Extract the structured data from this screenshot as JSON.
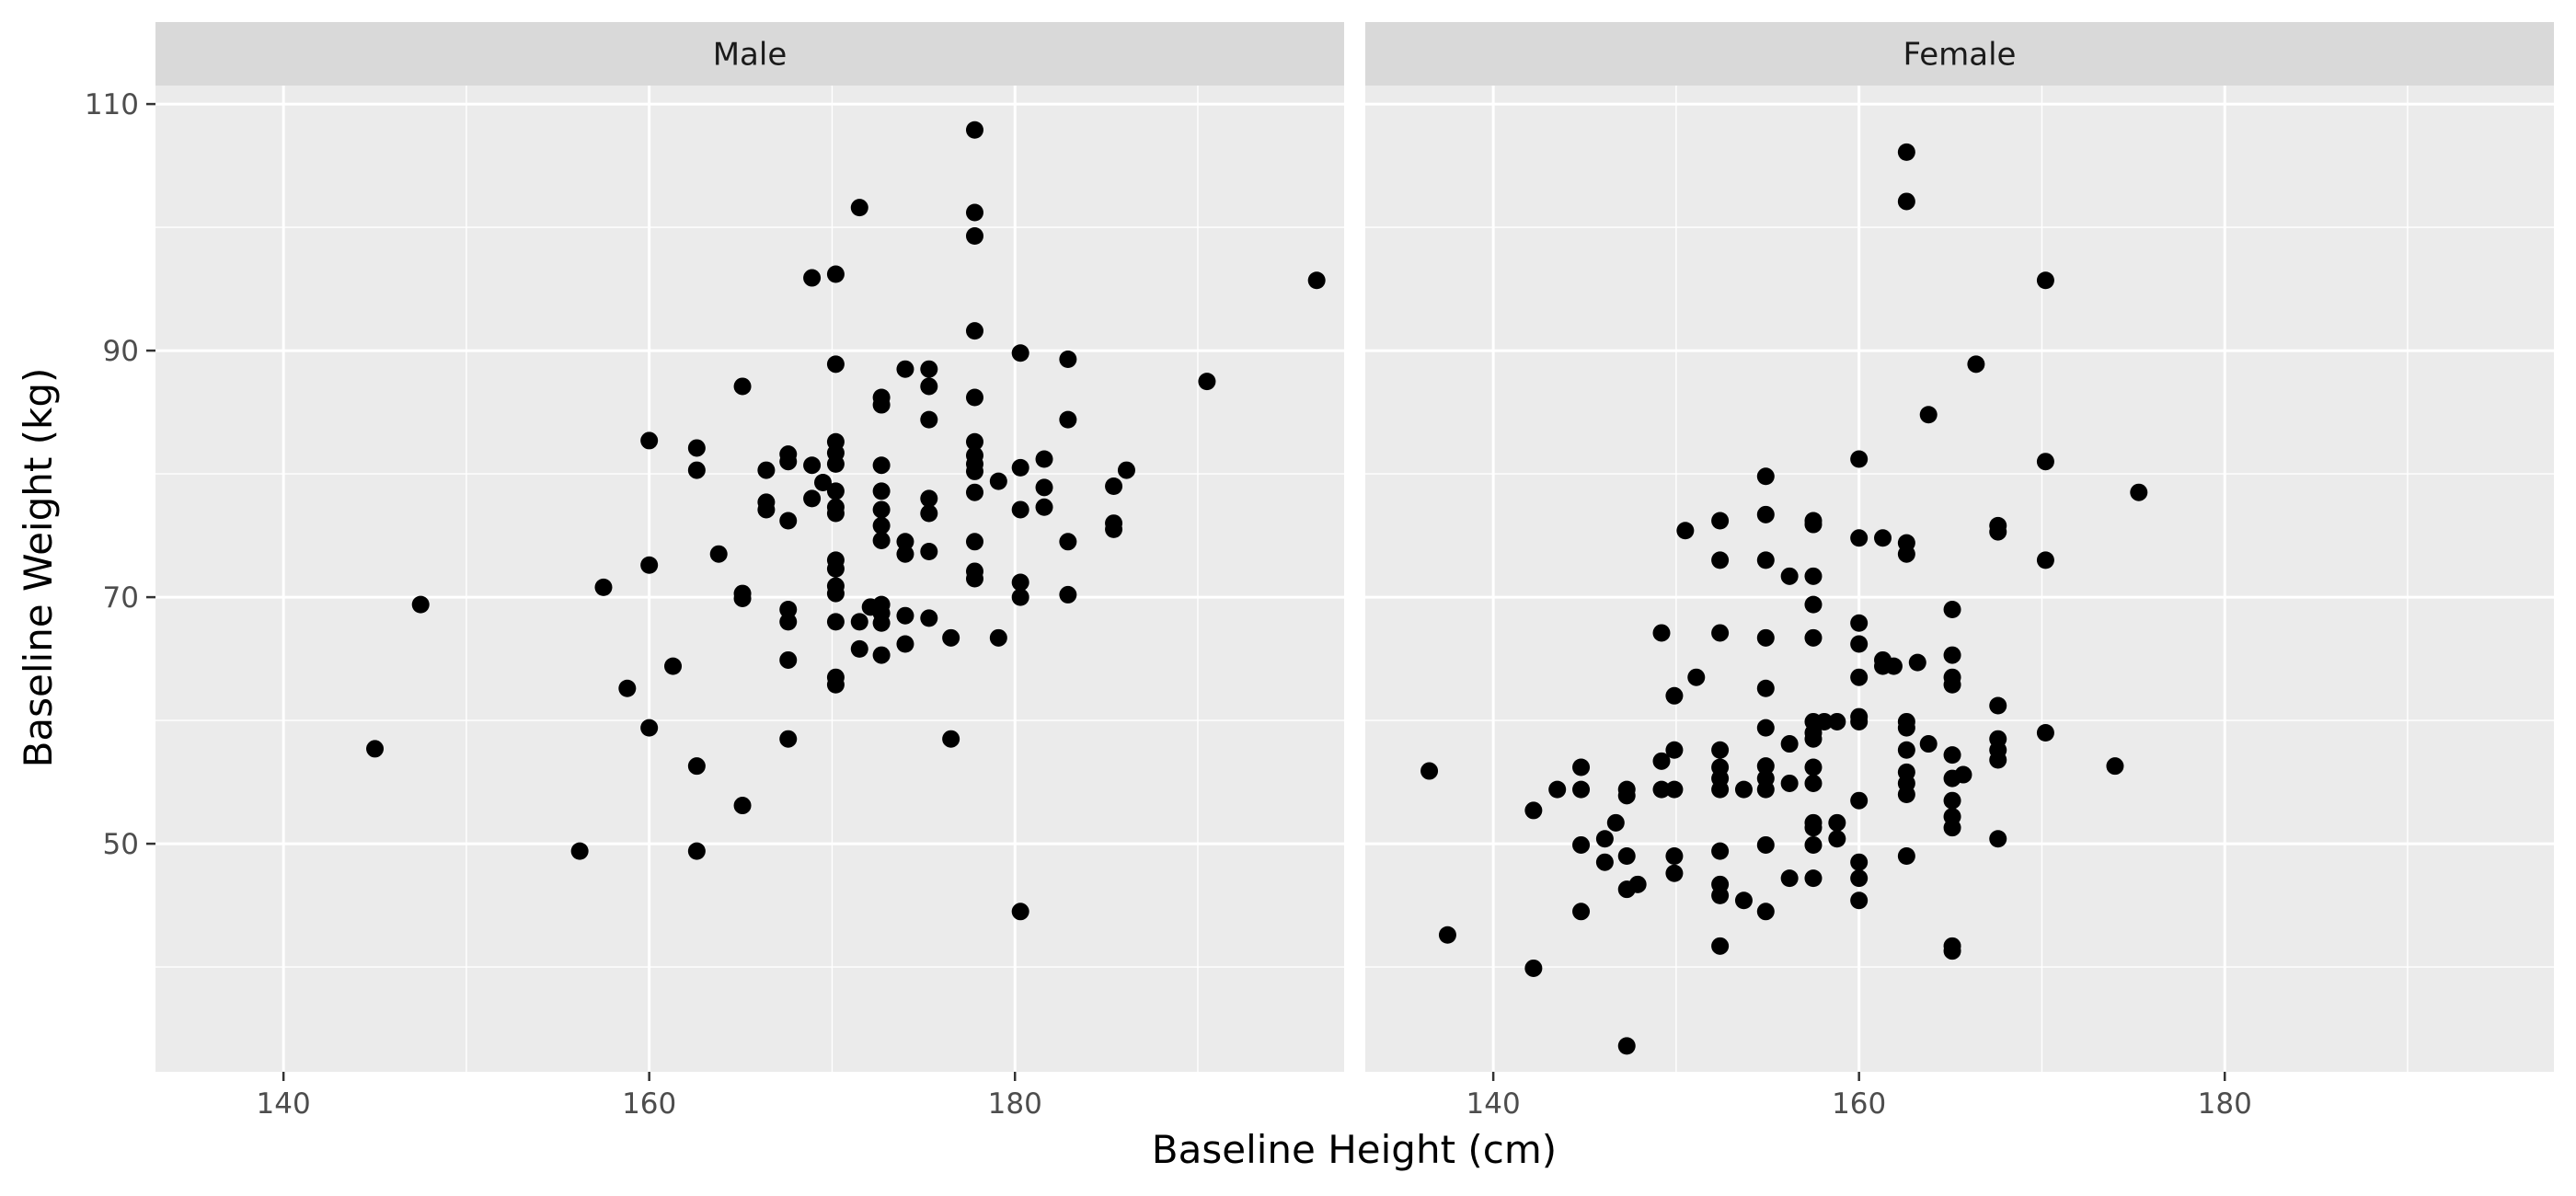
{
  "colors": {
    "panel_background": "#ebebeb",
    "strip_background": "#d9d9d9",
    "grid_line": "#ffffff",
    "point": "#000000",
    "tick_mark": "#333333"
  },
  "chart_data": {
    "type": "scatter",
    "xlabel": "Baseline Height (cm)",
    "ylabel": "Baseline Weight (kg)",
    "xlim": [
      133,
      198
    ],
    "ylim": [
      31.5,
      111.5
    ],
    "x_ticks": [
      140,
      160,
      180
    ],
    "y_ticks": [
      50,
      70,
      90,
      110
    ],
    "x_tick_labels": [
      "140",
      "160",
      "180"
    ],
    "y_tick_labels": [
      "50",
      "70",
      "90",
      "110"
    ],
    "grid": true,
    "legend": "none",
    "facets": [
      {
        "label": "Male",
        "points": [
          [
            145.0,
            57.7
          ],
          [
            147.5,
            69.4
          ],
          [
            156.2,
            49.4
          ],
          [
            157.5,
            70.8
          ],
          [
            158.8,
            62.6
          ],
          [
            160.0,
            82.7
          ],
          [
            160.0,
            72.6
          ],
          [
            160.0,
            59.4
          ],
          [
            161.3,
            64.4
          ],
          [
            162.6,
            82.1
          ],
          [
            162.6,
            80.3
          ],
          [
            162.6,
            56.3
          ],
          [
            162.6,
            49.4
          ],
          [
            163.8,
            73.5
          ],
          [
            165.1,
            87.1
          ],
          [
            165.1,
            70.3
          ],
          [
            165.1,
            69.9
          ],
          [
            165.1,
            53.1
          ],
          [
            166.4,
            80.3
          ],
          [
            166.4,
            77.7
          ],
          [
            166.4,
            77.1
          ],
          [
            167.6,
            81.6
          ],
          [
            167.6,
            81.0
          ],
          [
            167.6,
            76.2
          ],
          [
            167.6,
            69.0
          ],
          [
            167.6,
            68.0
          ],
          [
            167.6,
            64.9
          ],
          [
            167.6,
            58.5
          ],
          [
            168.9,
            95.9
          ],
          [
            168.9,
            80.7
          ],
          [
            168.9,
            78.0
          ],
          [
            169.5,
            79.3
          ],
          [
            170.2,
            96.2
          ],
          [
            170.2,
            88.9
          ],
          [
            170.2,
            82.6
          ],
          [
            170.2,
            81.7
          ],
          [
            170.2,
            80.8
          ],
          [
            170.2,
            78.6
          ],
          [
            170.2,
            77.3
          ],
          [
            170.2,
            76.8
          ],
          [
            170.2,
            73.0
          ],
          [
            170.2,
            72.3
          ],
          [
            170.2,
            70.9
          ],
          [
            170.2,
            70.3
          ],
          [
            170.2,
            68.0
          ],
          [
            170.2,
            63.5
          ],
          [
            170.2,
            62.9
          ],
          [
            171.5,
            101.6
          ],
          [
            171.5,
            68.0
          ],
          [
            171.5,
            65.8
          ],
          [
            172.1,
            69.2
          ],
          [
            172.7,
            86.2
          ],
          [
            172.7,
            85.6
          ],
          [
            172.7,
            80.7
          ],
          [
            172.7,
            78.6
          ],
          [
            172.7,
            77.1
          ],
          [
            172.7,
            75.8
          ],
          [
            172.7,
            74.6
          ],
          [
            172.7,
            69.4
          ],
          [
            172.7,
            68.7
          ],
          [
            172.7,
            67.9
          ],
          [
            172.7,
            65.3
          ],
          [
            174.0,
            88.5
          ],
          [
            174.0,
            74.5
          ],
          [
            174.0,
            73.5
          ],
          [
            174.0,
            68.5
          ],
          [
            174.0,
            66.2
          ],
          [
            175.3,
            88.5
          ],
          [
            175.3,
            87.1
          ],
          [
            175.3,
            84.4
          ],
          [
            175.3,
            78.0
          ],
          [
            175.3,
            76.8
          ],
          [
            175.3,
            73.7
          ],
          [
            175.3,
            68.3
          ],
          [
            176.5,
            66.7
          ],
          [
            176.5,
            58.5
          ],
          [
            177.8,
            107.9
          ],
          [
            177.8,
            101.2
          ],
          [
            177.8,
            99.3
          ],
          [
            177.8,
            91.6
          ],
          [
            177.8,
            86.2
          ],
          [
            177.8,
            82.6
          ],
          [
            177.8,
            81.5
          ],
          [
            177.8,
            80.8
          ],
          [
            177.8,
            80.2
          ],
          [
            177.8,
            78.5
          ],
          [
            177.8,
            74.5
          ],
          [
            177.8,
            72.1
          ],
          [
            177.8,
            71.5
          ],
          [
            179.1,
            79.4
          ],
          [
            179.1,
            66.7
          ],
          [
            180.3,
            89.8
          ],
          [
            180.3,
            80.5
          ],
          [
            180.3,
            77.1
          ],
          [
            180.3,
            71.2
          ],
          [
            180.3,
            70.0
          ],
          [
            180.3,
            44.5
          ],
          [
            181.6,
            81.2
          ],
          [
            181.6,
            78.9
          ],
          [
            181.6,
            77.3
          ],
          [
            182.9,
            89.3
          ],
          [
            182.9,
            84.4
          ],
          [
            182.9,
            74.5
          ],
          [
            182.9,
            70.2
          ],
          [
            185.4,
            79.0
          ],
          [
            185.4,
            76.0
          ],
          [
            185.4,
            75.5
          ],
          [
            186.1,
            80.3
          ],
          [
            190.5,
            87.5
          ],
          [
            196.5,
            95.7
          ]
        ]
      },
      {
        "label": "Female",
        "points": [
          [
            136.5,
            55.9
          ],
          [
            137.5,
            42.6
          ],
          [
            142.2,
            52.7
          ],
          [
            142.2,
            39.9
          ],
          [
            143.5,
            54.4
          ],
          [
            144.8,
            56.2
          ],
          [
            144.8,
            54.4
          ],
          [
            144.8,
            49.9
          ],
          [
            144.8,
            44.5
          ],
          [
            146.1,
            50.4
          ],
          [
            146.1,
            48.5
          ],
          [
            146.7,
            51.7
          ],
          [
            147.3,
            54.4
          ],
          [
            147.3,
            53.9
          ],
          [
            147.3,
            49.0
          ],
          [
            147.3,
            46.3
          ],
          [
            147.3,
            33.6
          ],
          [
            147.9,
            46.7
          ],
          [
            149.2,
            67.1
          ],
          [
            149.2,
            56.7
          ],
          [
            149.2,
            54.4
          ],
          [
            149.9,
            62.0
          ],
          [
            149.9,
            57.6
          ],
          [
            149.9,
            54.4
          ],
          [
            149.9,
            49.0
          ],
          [
            149.9,
            47.6
          ],
          [
            150.5,
            75.4
          ],
          [
            151.1,
            63.5
          ],
          [
            152.4,
            76.2
          ],
          [
            152.4,
            73.0
          ],
          [
            152.4,
            67.1
          ],
          [
            152.4,
            57.6
          ],
          [
            152.4,
            56.2
          ],
          [
            152.4,
            55.3
          ],
          [
            152.4,
            54.4
          ],
          [
            152.4,
            49.4
          ],
          [
            152.4,
            46.7
          ],
          [
            152.4,
            45.8
          ],
          [
            152.4,
            41.7
          ],
          [
            153.7,
            54.4
          ],
          [
            153.7,
            45.4
          ],
          [
            154.9,
            79.8
          ],
          [
            154.9,
            76.7
          ],
          [
            154.9,
            73.0
          ],
          [
            154.9,
            66.7
          ],
          [
            154.9,
            62.6
          ],
          [
            154.9,
            59.4
          ],
          [
            154.9,
            56.3
          ],
          [
            154.9,
            55.3
          ],
          [
            154.9,
            54.4
          ],
          [
            154.9,
            49.9
          ],
          [
            154.9,
            44.5
          ],
          [
            156.2,
            71.7
          ],
          [
            156.2,
            58.1
          ],
          [
            156.2,
            54.9
          ],
          [
            156.2,
            47.2
          ],
          [
            157.5,
            76.2
          ],
          [
            157.5,
            75.9
          ],
          [
            157.5,
            71.7
          ],
          [
            157.5,
            69.4
          ],
          [
            157.5,
            66.7
          ],
          [
            157.5,
            59.9
          ],
          [
            157.5,
            59.0
          ],
          [
            157.5,
            58.5
          ],
          [
            157.5,
            56.2
          ],
          [
            157.5,
            54.9
          ],
          [
            157.5,
            51.7
          ],
          [
            157.5,
            51.3
          ],
          [
            157.5,
            49.9
          ],
          [
            157.5,
            47.2
          ],
          [
            158.1,
            59.9
          ],
          [
            158.8,
            59.9
          ],
          [
            158.8,
            51.7
          ],
          [
            158.8,
            50.4
          ],
          [
            160.0,
            81.2
          ],
          [
            160.0,
            74.8
          ],
          [
            160.0,
            67.9
          ],
          [
            160.0,
            66.2
          ],
          [
            160.0,
            63.5
          ],
          [
            160.0,
            60.3
          ],
          [
            160.0,
            59.9
          ],
          [
            160.0,
            53.5
          ],
          [
            160.0,
            48.5
          ],
          [
            160.0,
            47.2
          ],
          [
            160.0,
            45.4
          ],
          [
            161.3,
            74.8
          ],
          [
            161.3,
            64.9
          ],
          [
            161.3,
            64.4
          ],
          [
            161.9,
            64.4
          ],
          [
            162.6,
            106.1
          ],
          [
            162.6,
            102.1
          ],
          [
            162.6,
            74.4
          ],
          [
            162.6,
            73.5
          ],
          [
            162.6,
            59.9
          ],
          [
            162.6,
            59.4
          ],
          [
            162.6,
            57.6
          ],
          [
            162.6,
            55.8
          ],
          [
            162.6,
            54.9
          ],
          [
            162.6,
            54.0
          ],
          [
            162.6,
            49.0
          ],
          [
            163.2,
            64.7
          ],
          [
            163.8,
            84.8
          ],
          [
            163.8,
            58.1
          ],
          [
            165.1,
            69.0
          ],
          [
            165.1,
            65.3
          ],
          [
            165.1,
            63.5
          ],
          [
            165.1,
            62.9
          ],
          [
            165.1,
            57.2
          ],
          [
            165.1,
            55.3
          ],
          [
            165.1,
            53.5
          ],
          [
            165.1,
            52.2
          ],
          [
            165.1,
            51.3
          ],
          [
            165.1,
            41.7
          ],
          [
            165.1,
            41.3
          ],
          [
            165.7,
            55.6
          ],
          [
            166.4,
            88.9
          ],
          [
            167.6,
            75.8
          ],
          [
            167.6,
            75.3
          ],
          [
            167.6,
            61.2
          ],
          [
            167.6,
            58.5
          ],
          [
            167.6,
            57.6
          ],
          [
            167.6,
            56.8
          ],
          [
            167.6,
            50.4
          ],
          [
            170.2,
            95.7
          ],
          [
            170.2,
            81.0
          ],
          [
            170.2,
            73.0
          ],
          [
            170.2,
            59.0
          ],
          [
            174.0,
            56.3
          ],
          [
            175.3,
            78.5
          ]
        ]
      }
    ]
  }
}
